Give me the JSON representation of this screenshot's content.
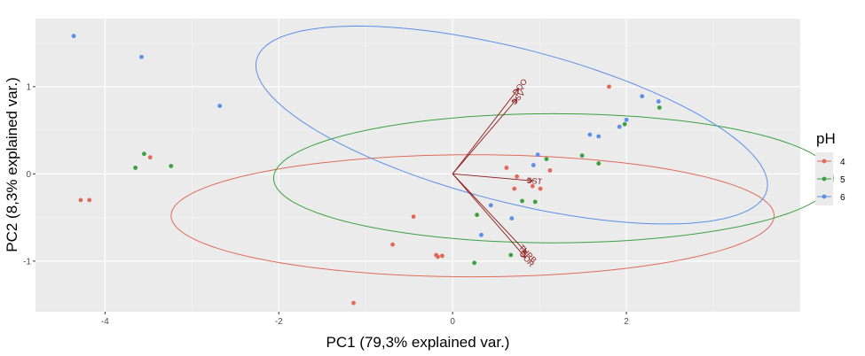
{
  "chart_data": {
    "type": "scatter",
    "subtype": "pca-biplot",
    "xlabel": "PC1 (79,3% explained var.)",
    "ylabel": "PC2 (8,3% explained var.)",
    "xlim": [
      -4.8,
      4.0
    ],
    "ylim": [
      -1.58,
      1.78
    ],
    "x_ticks": [
      -4,
      -2,
      0,
      2
    ],
    "y_ticks": [
      -1,
      0,
      1
    ],
    "x_tick_labels": [
      "-4",
      "-2",
      "0",
      "2"
    ],
    "y_tick_labels": [
      "-1",
      "0",
      "1"
    ],
    "legend_title": "pH",
    "series": [
      {
        "name": "4",
        "color": "#e06a5a",
        "points": [
          [
            -4.28,
            -0.3
          ],
          [
            -4.18,
            -0.3
          ],
          [
            -3.48,
            0.19
          ],
          [
            -1.14,
            -1.48
          ],
          [
            -0.69,
            -0.81
          ],
          [
            -0.45,
            -0.49
          ],
          [
            -0.19,
            -0.93
          ],
          [
            -0.17,
            -0.95
          ],
          [
            -0.12,
            -0.94
          ],
          [
            0.62,
            0.07
          ],
          [
            0.71,
            -0.17
          ],
          [
            0.74,
            -0.03
          ],
          [
            0.92,
            -0.14
          ],
          [
            1.01,
            -0.17
          ],
          [
            1.12,
            0.04
          ],
          [
            1.8,
            1.0
          ]
        ],
        "ellipse": {
          "cx": 0.23,
          "cy": -0.48,
          "rx": 3.47,
          "ry": 0.7,
          "angle_deg": 0
        }
      },
      {
        "name": "5",
        "color": "#3aa142",
        "points": [
          [
            -3.65,
            0.07
          ],
          [
            -3.55,
            0.23
          ],
          [
            -3.24,
            0.09
          ],
          [
            0.25,
            -1.02
          ],
          [
            0.28,
            -0.47
          ],
          [
            0.67,
            -0.93
          ],
          [
            0.8,
            -0.31
          ],
          [
            0.95,
            -0.32
          ],
          [
            1.08,
            0.17
          ],
          [
            1.49,
            0.21
          ],
          [
            1.68,
            0.12
          ],
          [
            1.98,
            0.57
          ],
          [
            2.38,
            0.76
          ]
        ],
        "ellipse": {
          "cx": 1.16,
          "cy": -0.05,
          "rx": 3.22,
          "ry": 0.74,
          "angle_deg": 0
        }
      },
      {
        "name": "6",
        "color": "#5b8fe8",
        "points": [
          [
            -4.36,
            1.58
          ],
          [
            -3.58,
            1.34
          ],
          [
            -2.68,
            0.78
          ],
          [
            0.33,
            -0.7
          ],
          [
            0.44,
            -0.36
          ],
          [
            0.68,
            -0.51
          ],
          [
            0.93,
            0.1
          ],
          [
            0.98,
            0.22
          ],
          [
            1.58,
            0.45
          ],
          [
            1.68,
            0.43
          ],
          [
            1.92,
            0.54
          ],
          [
            2.0,
            0.62
          ],
          [
            2.18,
            0.89
          ],
          [
            2.37,
            0.83
          ]
        ],
        "ellipse": {
          "cx": 0.68,
          "cy": 0.56,
          "rx": 3.03,
          "ry": 0.88,
          "angle_deg": -14.3
        }
      }
    ],
    "loadings": [
      {
        "label": "DQO",
        "x": 0.76,
        "y": 0.98
      },
      {
        "label": "SSV",
        "x": 0.74,
        "y": 0.86
      },
      {
        "label": "SST",
        "x": 0.92,
        "y": -0.08
      },
      {
        "label": "TURB",
        "x": 0.85,
        "y": -0.9
      },
      {
        "label": "COR",
        "x": 0.84,
        "y": -0.96
      }
    ],
    "loading_color": "#8b1a1a",
    "grid": true,
    "panel_background": "#ebebeb",
    "legend_position": "right"
  }
}
